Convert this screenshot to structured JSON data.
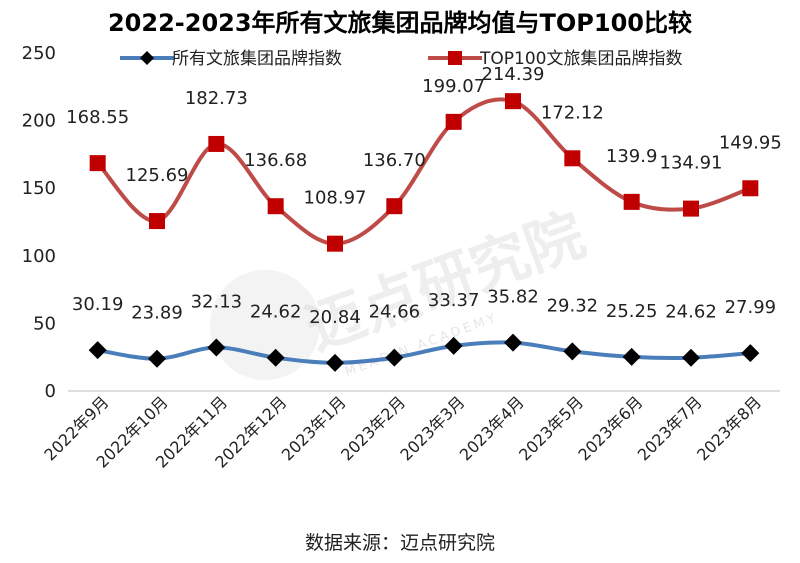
{
  "chart_data": {
    "type": "line",
    "title": "2022-2023年所有文旅集团品牌均值与TOP100比较",
    "categories": [
      "2022年9月",
      "2022年10月",
      "2022年11月",
      "2022年12月",
      "2023年1月",
      "2023年2月",
      "2023年3月",
      "2023年4月",
      "2023年5月",
      "2023年6月",
      "2023年7月",
      "2023年8月"
    ],
    "series": [
      {
        "name": "所有文旅集团品牌指数",
        "color": "#4a7ebb",
        "marker": "diamond",
        "marker_color": "#000000",
        "values": [
          30.19,
          23.89,
          32.13,
          24.62,
          20.84,
          24.66,
          33.37,
          35.82,
          29.32,
          25.25,
          24.62,
          27.99
        ],
        "labels": [
          "30.19",
          "23.89",
          "32.13",
          "24.62",
          "20.84",
          "24.66",
          "33.37",
          "35.82",
          "29.32",
          "25.25",
          "24.62",
          "27.99"
        ]
      },
      {
        "name": "TOP100文旅集团品牌指数",
        "color": "#be4b48",
        "marker": "square",
        "marker_color": "#c00000",
        "values": [
          168.55,
          125.69,
          182.73,
          136.68,
          108.97,
          136.7,
          199.07,
          214.39,
          172.12,
          139.9,
          134.91,
          149.95
        ],
        "labels": [
          "168.55",
          "125.69",
          "182.73",
          "136.68",
          "108.97",
          "136.70",
          "199.07",
          "214.39",
          "172.12",
          "139.9",
          "134.91",
          "149.95"
        ]
      }
    ],
    "y_ticks": [
      "0",
      "50",
      "100",
      "150",
      "200",
      "250"
    ],
    "ylim": [
      0,
      250
    ],
    "grid": false,
    "legend_position": "top",
    "source": "数据来源：迈点研究院"
  },
  "watermark": {
    "text": "迈点研究院",
    "subtext": "MEADIN ACADEMY"
  }
}
